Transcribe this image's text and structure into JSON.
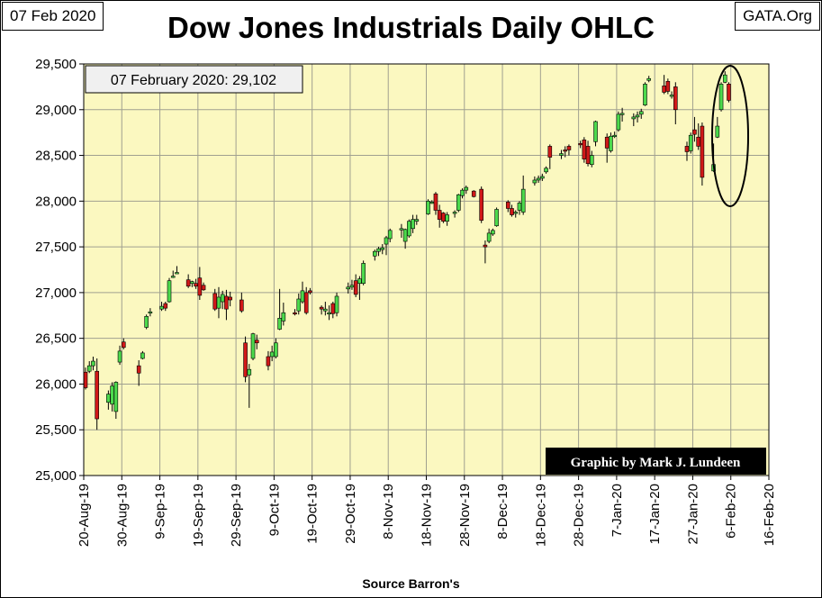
{
  "header": {
    "date": "07 Feb 2020",
    "site": "GATA.Org",
    "title": "Dow Jones Industrials Daily OHLC"
  },
  "annotations": {
    "last_value": "07 February 2020: 29,102",
    "credit": "Graphic by Mark J. Lundeen",
    "source": "Source Barron's"
  },
  "colors": {
    "plot_bg": "#fbf8c0",
    "grid": "#a0a090",
    "up": "#4cd94c",
    "down": "#d01818",
    "credit_bg": "#000000",
    "credit_text": "#ffffff"
  },
  "chart_data": {
    "type": "ohlc",
    "title": "Dow Jones Industrials Daily OHLC",
    "xlabel": "Source Barron's",
    "ylabel": "",
    "ylim": [
      25000,
      29500
    ],
    "yticks": [
      25000,
      25500,
      26000,
      26500,
      27000,
      27500,
      28000,
      28500,
      29000,
      29500
    ],
    "ytick_labels": [
      "25,000",
      "25,500",
      "26,000",
      "26,500",
      "27,000",
      "27,500",
      "28,000",
      "28,500",
      "29,000",
      "29,500"
    ],
    "xtick_labels": [
      "20-Aug-19",
      "30-Aug-19",
      "9-Sep-19",
      "19-Sep-19",
      "29-Sep-19",
      "9-Oct-19",
      "19-Oct-19",
      "29-Oct-19",
      "8-Nov-19",
      "18-Nov-19",
      "28-Nov-19",
      "8-Dec-19",
      "18-Dec-19",
      "28-Dec-19",
      "7-Jan-20",
      "17-Jan-20",
      "27-Jan-20",
      "6-Feb-20",
      "16-Feb-20"
    ],
    "x_unit": "days since 20-Aug-19",
    "xlim": [
      0,
      180
    ],
    "grid": true,
    "last_close": 29102,
    "bars": [
      {
        "x": 0,
        "o": 26130,
        "h": 26180,
        "l": 25940,
        "c": 25960
      },
      {
        "x": 1,
        "o": 26140,
        "h": 26250,
        "l": 26120,
        "c": 26200
      },
      {
        "x": 2,
        "o": 26200,
        "h": 26300,
        "l": 26150,
        "c": 26250
      },
      {
        "x": 3,
        "o": 26140,
        "h": 26280,
        "l": 25500,
        "c": 25620
      },
      {
        "x": 6,
        "o": 25800,
        "h": 25930,
        "l": 25720,
        "c": 25890
      },
      {
        "x": 7,
        "o": 25780,
        "h": 26020,
        "l": 25700,
        "c": 25980
      },
      {
        "x": 8,
        "o": 25700,
        "h": 26030,
        "l": 25620,
        "c": 26020
      },
      {
        "x": 9,
        "o": 26240,
        "h": 26420,
        "l": 26210,
        "c": 26360
      },
      {
        "x": 10,
        "o": 26460,
        "h": 26500,
        "l": 26380,
        "c": 26400
      },
      {
        "x": 14,
        "o": 26200,
        "h": 26260,
        "l": 25980,
        "c": 26120
      },
      {
        "x": 15,
        "o": 26280,
        "h": 26360,
        "l": 26270,
        "c": 26340
      },
      {
        "x": 16,
        "o": 26620,
        "h": 26760,
        "l": 26600,
        "c": 26740
      },
      {
        "x": 17,
        "o": 26780,
        "h": 26830,
        "l": 26740,
        "c": 26790
      },
      {
        "x": 20,
        "o": 26820,
        "h": 26900,
        "l": 26800,
        "c": 26850
      },
      {
        "x": 21,
        "o": 26880,
        "h": 26900,
        "l": 26800,
        "c": 26830
      },
      {
        "x": 22,
        "o": 26900,
        "h": 27160,
        "l": 26890,
        "c": 27130
      },
      {
        "x": 23,
        "o": 27170,
        "h": 27240,
        "l": 27160,
        "c": 27180
      },
      {
        "x": 24,
        "o": 27220,
        "h": 27290,
        "l": 27210,
        "c": 27220
      },
      {
        "x": 27,
        "o": 27140,
        "h": 27200,
        "l": 27050,
        "c": 27070
      },
      {
        "x": 28,
        "o": 27100,
        "h": 27130,
        "l": 27060,
        "c": 27120
      },
      {
        "x": 29,
        "o": 27100,
        "h": 27150,
        "l": 27040,
        "c": 27070
      },
      {
        "x": 30,
        "o": 27160,
        "h": 27280,
        "l": 26920,
        "c": 26970
      },
      {
        "x": 31,
        "o": 27080,
        "h": 27110,
        "l": 27020,
        "c": 27030
      },
      {
        "x": 34,
        "o": 26990,
        "h": 27040,
        "l": 26800,
        "c": 26820
      },
      {
        "x": 35,
        "o": 26830,
        "h": 27060,
        "l": 26720,
        "c": 26950
      },
      {
        "x": 36,
        "o": 26900,
        "h": 27020,
        "l": 26820,
        "c": 26980
      },
      {
        "x": 37,
        "o": 26960,
        "h": 27030,
        "l": 26700,
        "c": 26820
      },
      {
        "x": 38,
        "o": 26950,
        "h": 27010,
        "l": 26850,
        "c": 26920
      },
      {
        "x": 41,
        "o": 26920,
        "h": 27000,
        "l": 26780,
        "c": 26800
      },
      {
        "x": 42,
        "o": 26450,
        "h": 26520,
        "l": 26020,
        "c": 26080
      },
      {
        "x": 43,
        "o": 26100,
        "h": 26220,
        "l": 25740,
        "c": 26160
      },
      {
        "x": 44,
        "o": 26280,
        "h": 26560,
        "l": 26260,
        "c": 26550
      },
      {
        "x": 45,
        "o": 26480,
        "h": 26540,
        "l": 26380,
        "c": 26450
      },
      {
        "x": 48,
        "o": 26300,
        "h": 26360,
        "l": 26150,
        "c": 26200
      },
      {
        "x": 49,
        "o": 26300,
        "h": 26420,
        "l": 26250,
        "c": 26350
      },
      {
        "x": 50,
        "o": 26300,
        "h": 26500,
        "l": 26280,
        "c": 26450
      },
      {
        "x": 51,
        "o": 26600,
        "h": 27040,
        "l": 26590,
        "c": 26720
      },
      {
        "x": 52,
        "o": 26690,
        "h": 26890,
        "l": 26640,
        "c": 26780
      },
      {
        "x": 55,
        "o": 26780,
        "h": 26820,
        "l": 26750,
        "c": 26770
      },
      {
        "x": 56,
        "o": 26800,
        "h": 26990,
        "l": 26760,
        "c": 26930
      },
      {
        "x": 57,
        "o": 26900,
        "h": 27120,
        "l": 26880,
        "c": 27020
      },
      {
        "x": 58,
        "o": 27000,
        "h": 27060,
        "l": 26760,
        "c": 26780
      },
      {
        "x": 59,
        "o": 27020,
        "h": 27050,
        "l": 26980,
        "c": 27000
      },
      {
        "x": 62,
        "o": 26840,
        "h": 26860,
        "l": 26760,
        "c": 26820
      },
      {
        "x": 63,
        "o": 26800,
        "h": 26900,
        "l": 26750,
        "c": 26820
      },
      {
        "x": 64,
        "o": 26780,
        "h": 26860,
        "l": 26700,
        "c": 26780
      },
      {
        "x": 65,
        "o": 26880,
        "h": 26900,
        "l": 26720,
        "c": 26770
      },
      {
        "x": 66,
        "o": 26780,
        "h": 27000,
        "l": 26740,
        "c": 26960
      },
      {
        "x": 69,
        "o": 27040,
        "h": 27110,
        "l": 26990,
        "c": 27060
      },
      {
        "x": 70,
        "o": 27060,
        "h": 27140,
        "l": 27030,
        "c": 27080
      },
      {
        "x": 71,
        "o": 27130,
        "h": 27200,
        "l": 26950,
        "c": 26980
      },
      {
        "x": 72,
        "o": 27100,
        "h": 27180,
        "l": 26920,
        "c": 27150
      },
      {
        "x": 73,
        "o": 27100,
        "h": 27350,
        "l": 27080,
        "c": 27320
      },
      {
        "x": 76,
        "o": 27400,
        "h": 27470,
        "l": 27350,
        "c": 27450
      },
      {
        "x": 77,
        "o": 27450,
        "h": 27500,
        "l": 27400,
        "c": 27480
      },
      {
        "x": 78,
        "o": 27470,
        "h": 27530,
        "l": 27420,
        "c": 27490
      },
      {
        "x": 79,
        "o": 27530,
        "h": 27620,
        "l": 27410,
        "c": 27600
      },
      {
        "x": 80,
        "o": 27590,
        "h": 27700,
        "l": 27550,
        "c": 27680
      },
      {
        "x": 83,
        "o": 27700,
        "h": 27750,
        "l": 27600,
        "c": 27700
      },
      {
        "x": 84,
        "o": 27560,
        "h": 27700,
        "l": 27480,
        "c": 27690
      },
      {
        "x": 85,
        "o": 27620,
        "h": 27800,
        "l": 27600,
        "c": 27780
      },
      {
        "x": 86,
        "o": 27700,
        "h": 27850,
        "l": 27650,
        "c": 27800
      },
      {
        "x": 87,
        "o": 27780,
        "h": 27850,
        "l": 27740,
        "c": 27800
      },
      {
        "x": 90,
        "o": 27860,
        "h": 28020,
        "l": 27850,
        "c": 28000
      },
      {
        "x": 91,
        "o": 27980,
        "h": 28010,
        "l": 27970,
        "c": 27990
      },
      {
        "x": 92,
        "o": 28080,
        "h": 28100,
        "l": 27850,
        "c": 27900
      },
      {
        "x": 93,
        "o": 27900,
        "h": 27960,
        "l": 27710,
        "c": 27800
      },
      {
        "x": 94,
        "o": 27870,
        "h": 27880,
        "l": 27760,
        "c": 27780
      },
      {
        "x": 95,
        "o": 27780,
        "h": 27880,
        "l": 27730,
        "c": 27850
      },
      {
        "x": 97,
        "o": 27870,
        "h": 27900,
        "l": 27820,
        "c": 27880
      },
      {
        "x": 98,
        "o": 27900,
        "h": 28080,
        "l": 27880,
        "c": 28070
      },
      {
        "x": 99,
        "o": 28060,
        "h": 28140,
        "l": 28030,
        "c": 28120
      },
      {
        "x": 100,
        "o": 28120,
        "h": 28170,
        "l": 28080,
        "c": 28150
      },
      {
        "x": 102,
        "o": 28110,
        "h": 28120,
        "l": 28040,
        "c": 28050
      },
      {
        "x": 104,
        "o": 28130,
        "h": 28160,
        "l": 27760,
        "c": 27790
      },
      {
        "x": 105,
        "o": 27520,
        "h": 27570,
        "l": 27320,
        "c": 27500
      },
      {
        "x": 106,
        "o": 27560,
        "h": 27700,
        "l": 27540,
        "c": 27650
      },
      {
        "x": 107,
        "o": 27640,
        "h": 27700,
        "l": 27620,
        "c": 27680
      },
      {
        "x": 108,
        "o": 27730,
        "h": 27930,
        "l": 27720,
        "c": 27910
      },
      {
        "x": 111,
        "o": 27990,
        "h": 28010,
        "l": 27880,
        "c": 27920
      },
      {
        "x": 112,
        "o": 27920,
        "h": 27960,
        "l": 27830,
        "c": 27850
      },
      {
        "x": 113,
        "o": 27870,
        "h": 27900,
        "l": 27820,
        "c": 27880
      },
      {
        "x": 114,
        "o": 27900,
        "h": 28000,
        "l": 27850,
        "c": 27980
      },
      {
        "x": 115,
        "o": 27880,
        "h": 28280,
        "l": 27850,
        "c": 28130
      },
      {
        "x": 118,
        "o": 28200,
        "h": 28270,
        "l": 28170,
        "c": 28230
      },
      {
        "x": 119,
        "o": 28230,
        "h": 28280,
        "l": 28200,
        "c": 28250
      },
      {
        "x": 120,
        "o": 28250,
        "h": 28300,
        "l": 28220,
        "c": 28270
      },
      {
        "x": 121,
        "o": 28320,
        "h": 28380,
        "l": 28300,
        "c": 28360
      },
      {
        "x": 122,
        "o": 28600,
        "h": 28620,
        "l": 28350,
        "c": 28480
      },
      {
        "x": 125,
        "o": 28500,
        "h": 28560,
        "l": 28460,
        "c": 28520
      },
      {
        "x": 126,
        "o": 28560,
        "h": 28600,
        "l": 28480,
        "c": 28550
      },
      {
        "x": 127,
        "o": 28600,
        "h": 28620,
        "l": 28500,
        "c": 28560
      },
      {
        "x": 130,
        "o": 28630,
        "h": 28660,
        "l": 28580,
        "c": 28620
      },
      {
        "x": 131,
        "o": 28670,
        "h": 28700,
        "l": 28420,
        "c": 28460
      },
      {
        "x": 132,
        "o": 28600,
        "h": 28660,
        "l": 28380,
        "c": 28410
      },
      {
        "x": 133,
        "o": 28400,
        "h": 28550,
        "l": 28370,
        "c": 28500
      },
      {
        "x": 134,
        "o": 28650,
        "h": 28880,
        "l": 28600,
        "c": 28870
      },
      {
        "x": 137,
        "o": 28700,
        "h": 28740,
        "l": 28420,
        "c": 28580
      },
      {
        "x": 138,
        "o": 28550,
        "h": 28750,
        "l": 28530,
        "c": 28710
      },
      {
        "x": 139,
        "o": 28710,
        "h": 28760,
        "l": 28690,
        "c": 28720
      },
      {
        "x": 140,
        "o": 28780,
        "h": 28980,
        "l": 28760,
        "c": 28950
      },
      {
        "x": 141,
        "o": 28950,
        "h": 29020,
        "l": 28870,
        "c": 28960
      },
      {
        "x": 144,
        "o": 28900,
        "h": 28960,
        "l": 28820,
        "c": 28920
      },
      {
        "x": 145,
        "o": 28920,
        "h": 28980,
        "l": 28860,
        "c": 28940
      },
      {
        "x": 146,
        "o": 28950,
        "h": 29010,
        "l": 28900,
        "c": 28980
      },
      {
        "x": 147,
        "o": 29050,
        "h": 29300,
        "l": 29040,
        "c": 29280
      },
      {
        "x": 148,
        "o": 29320,
        "h": 29370,
        "l": 29300,
        "c": 29340
      },
      {
        "x": 152,
        "o": 29260,
        "h": 29380,
        "l": 29170,
        "c": 29190
      },
      {
        "x": 153,
        "o": 29310,
        "h": 29340,
        "l": 29170,
        "c": 29200
      },
      {
        "x": 154,
        "o": 29150,
        "h": 29200,
        "l": 29120,
        "c": 29160
      },
      {
        "x": 155,
        "o": 29250,
        "h": 29300,
        "l": 28840,
        "c": 29000
      },
      {
        "x": 158,
        "o": 28600,
        "h": 28650,
        "l": 28440,
        "c": 28540
      },
      {
        "x": 159,
        "o": 28550,
        "h": 28750,
        "l": 28520,
        "c": 28720
      },
      {
        "x": 160,
        "o": 28780,
        "h": 28920,
        "l": 28650,
        "c": 28730
      },
      {
        "x": 161,
        "o": 28700,
        "h": 28850,
        "l": 28560,
        "c": 28600
      },
      {
        "x": 162,
        "o": 28820,
        "h": 28860,
        "l": 28170,
        "c": 28260
      },
      {
        "x": 165,
        "o": 28330,
        "h": 28630,
        "l": 28320,
        "c": 28400
      },
      {
        "x": 166,
        "o": 28700,
        "h": 28920,
        "l": 28690,
        "c": 28820
      },
      {
        "x": 167,
        "o": 29000,
        "h": 29300,
        "l": 28980,
        "c": 29280
      },
      {
        "x": 168,
        "o": 29300,
        "h": 29420,
        "l": 29290,
        "c": 29380
      },
      {
        "x": 169,
        "o": 29280,
        "h": 29300,
        "l": 29080,
        "c": 29102
      }
    ]
  }
}
